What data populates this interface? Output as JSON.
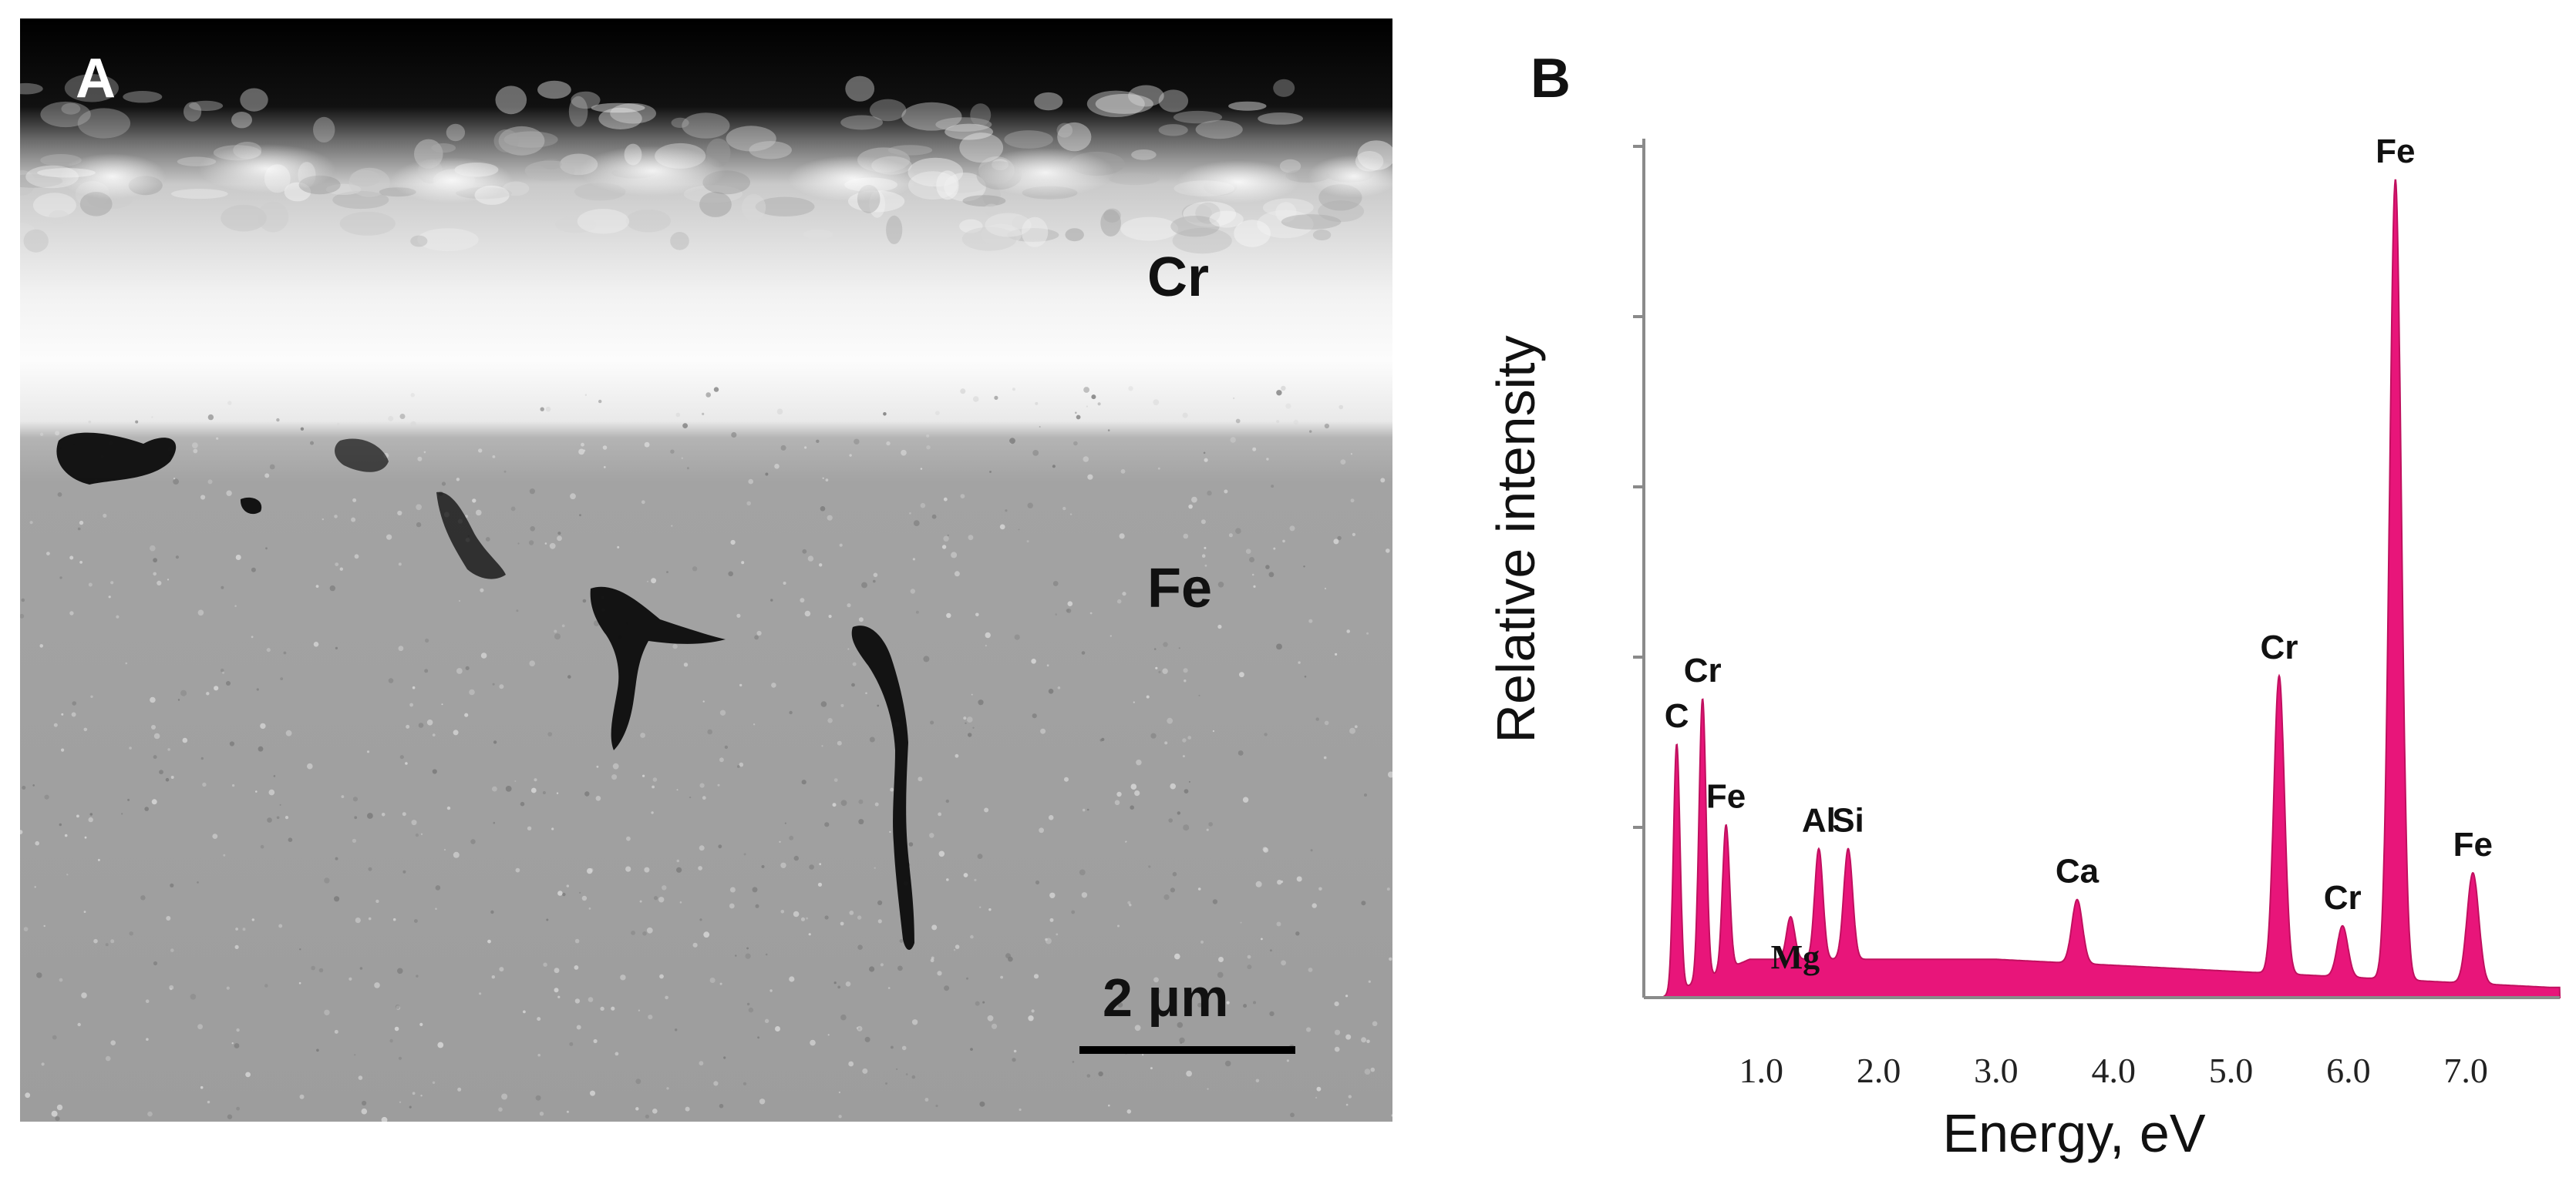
{
  "panel_a": {
    "letter": "A",
    "layers": {
      "cr": "Cr",
      "fe": "Fe"
    },
    "scale_bar": "2 μm"
  },
  "panel_b": {
    "letter": "B"
  },
  "chart_data": {
    "type": "area",
    "title": "",
    "xlabel": "Energy, eV",
    "ylabel": "Relative intensity",
    "xlim": [
      0.0,
      7.8
    ],
    "ylim": [
      0,
      100
    ],
    "xticks": [
      "1.0",
      "2.0",
      "3.0",
      "4.0",
      "5.0",
      "6.0",
      "7.0"
    ],
    "xtick_values": [
      1.0,
      2.0,
      3.0,
      4.0,
      5.0,
      6.0,
      7.0
    ],
    "yticks_unlabeled": [
      20,
      40,
      60,
      80,
      100
    ],
    "color": "#e8157a",
    "grid": false,
    "background_level": 4.5,
    "peaks": [
      {
        "label": "C",
        "x": 0.28,
        "y": 29,
        "sigma": 0.028
      },
      {
        "label": "Cr",
        "x": 0.5,
        "y": 33,
        "sigma": 0.03
      },
      {
        "label": "Fe",
        "x": 0.7,
        "y": 17,
        "sigma": 0.03
      },
      {
        "label": "Mg",
        "x": 1.25,
        "y": 5,
        "sigma": 0.035
      },
      {
        "label": "Al",
        "x": 1.49,
        "y": 13,
        "sigma": 0.035
      },
      {
        "label": "Si",
        "x": 1.74,
        "y": 13,
        "sigma": 0.038
      },
      {
        "label": "Ca",
        "x": 3.69,
        "y": 7.5,
        "sigma": 0.045
      },
      {
        "label": "Cr",
        "x": 5.41,
        "y": 35,
        "sigma": 0.045
      },
      {
        "label": "Cr",
        "x": 5.95,
        "y": 6,
        "sigma": 0.045
      },
      {
        "label": "Fe",
        "x": 6.4,
        "y": 94,
        "sigma": 0.05
      },
      {
        "label": "Fe",
        "x": 7.06,
        "y": 13,
        "sigma": 0.05
      }
    ]
  }
}
